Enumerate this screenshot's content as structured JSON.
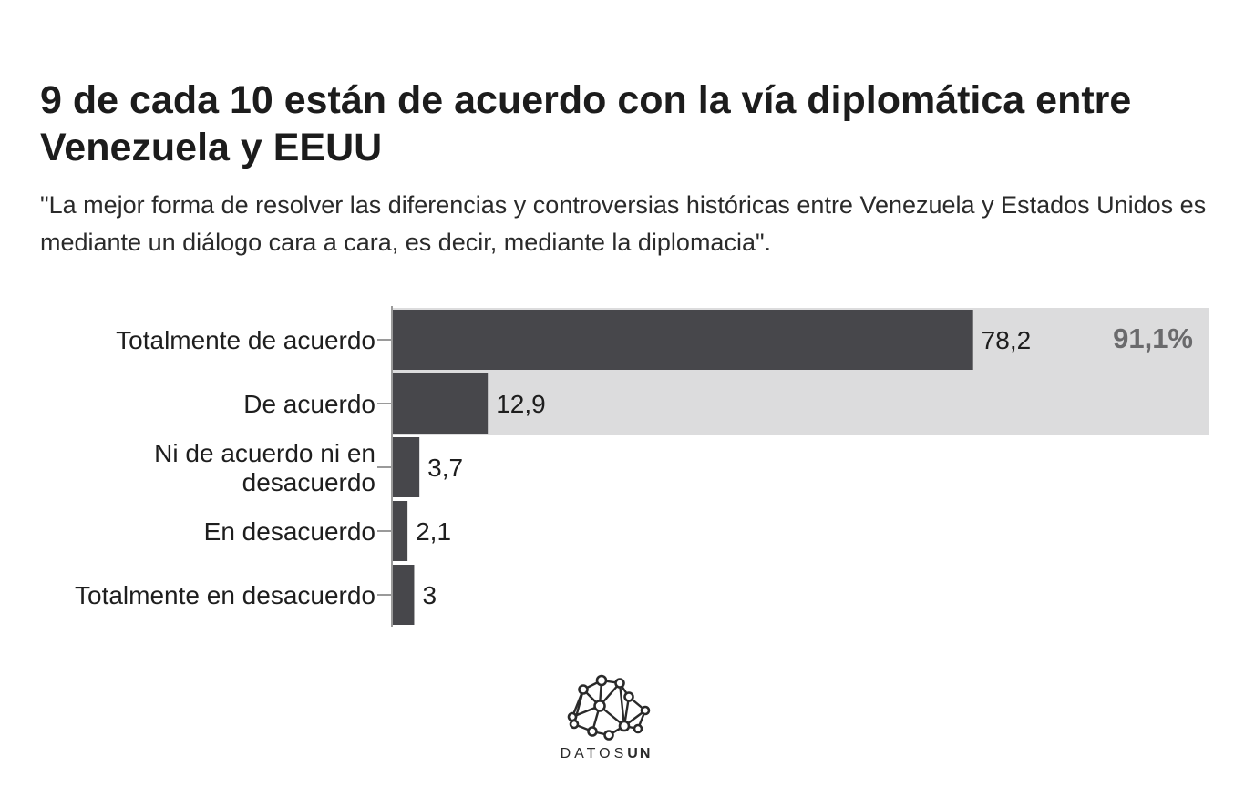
{
  "header": {
    "title": "9 de cada 10 están de acuerdo con la vía diplomática entre Venezuela y EEUU",
    "subtitle": "\"La mejor forma de resolver las diferencias y controversias históricas entre Venezuela y Estados Unidos es mediante un diálogo cara a cara, es decir, mediante la diplomacia\"."
  },
  "chart_data": {
    "type": "bar",
    "orientation": "horizontal",
    "categories": [
      [
        "Totalmente de acuerdo"
      ],
      [
        "De acuerdo"
      ],
      [
        "Ni de acuerdo ni en",
        "desacuerdo"
      ],
      [
        "En desacuerdo"
      ],
      [
        "Totalmente en desacuerdo"
      ]
    ],
    "values": [
      78.2,
      12.9,
      3.7,
      2.1,
      3
    ],
    "value_labels": [
      "78,2",
      "12,9",
      "3,7",
      "2,1",
      "3"
    ],
    "xlim": [
      0,
      110
    ],
    "highlight": {
      "categories": [
        "Totalmente de acuerdo",
        "De acuerdo"
      ],
      "label": "91,1%"
    },
    "colors": {
      "bar": "#47474b",
      "highlight": "#dcdcdd",
      "axis": "#9a9a9a"
    }
  },
  "branding": {
    "logo_part1": "DATOS",
    "logo_part2": "UN"
  }
}
